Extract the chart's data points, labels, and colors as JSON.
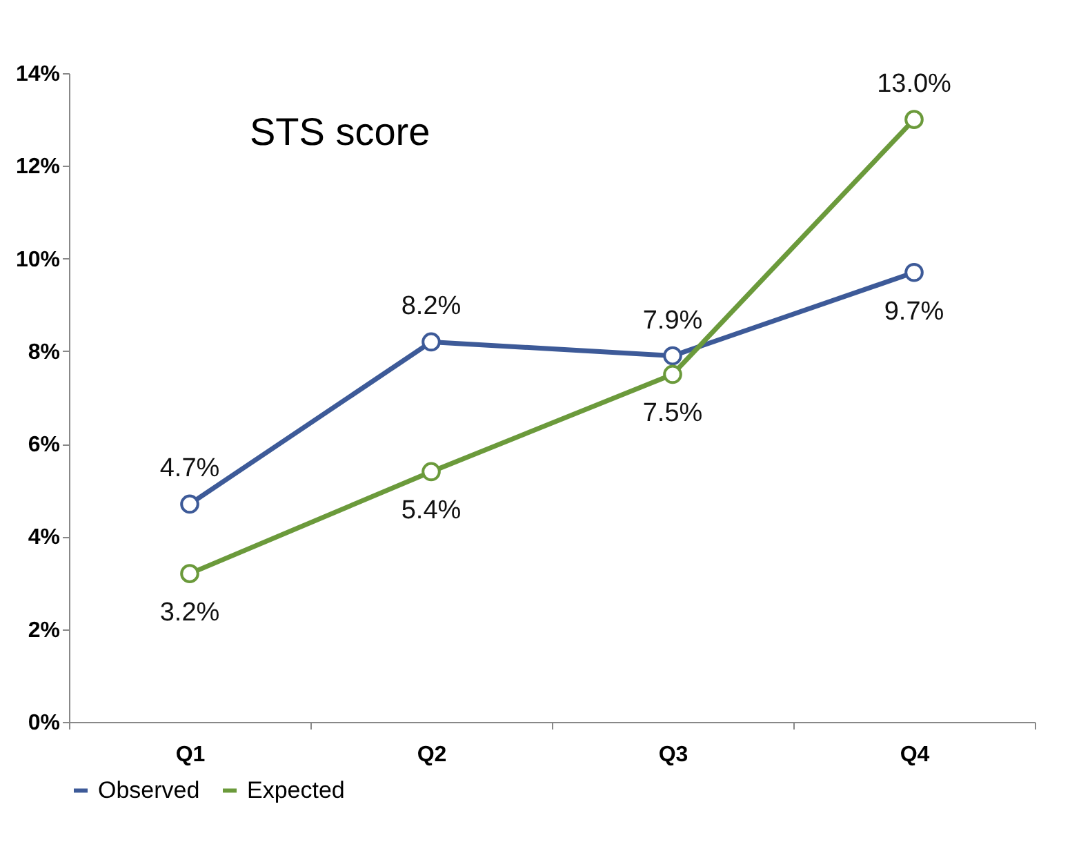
{
  "chart_data": {
    "type": "line",
    "title": "STS score",
    "categories": [
      "Q1",
      "Q2",
      "Q3",
      "Q4"
    ],
    "series": [
      {
        "name": "Observed",
        "color": "#3d5a98",
        "values": [
          4.7,
          8.2,
          7.9,
          9.7
        ],
        "value_labels": [
          "4.7%",
          "8.2%",
          "7.9%",
          "9.7%"
        ]
      },
      {
        "name": "Expected",
        "color": "#6b9a3b",
        "values": [
          3.2,
          5.4,
          7.5,
          13.0
        ],
        "value_labels": [
          "3.2%",
          "5.4%",
          "7.5%",
          "13.0%"
        ]
      }
    ],
    "ylim": [
      0,
      14
    ],
    "yticks": [
      {
        "value": 0,
        "label": "0%"
      },
      {
        "value": 2,
        "label": "2%"
      },
      {
        "value": 4,
        "label": "4%"
      },
      {
        "value": 6,
        "label": "6%"
      },
      {
        "value": 8,
        "label": "8%"
      },
      {
        "value": 10,
        "label": "10%"
      },
      {
        "value": 12,
        "label": "12%"
      },
      {
        "value": 14,
        "label": "14%"
      }
    ],
    "grid": false,
    "legend": "bottom",
    "marker": "circle",
    "line_style": "solid"
  }
}
